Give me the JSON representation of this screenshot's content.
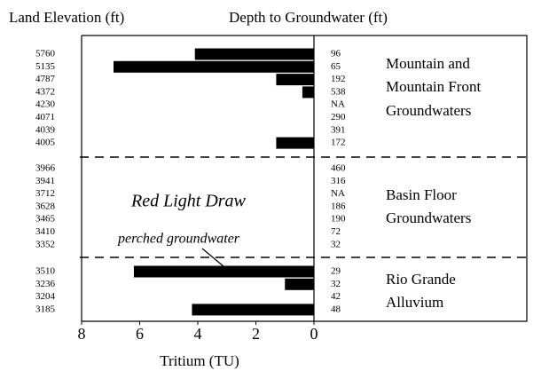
{
  "chart_data": {
    "type": "bar",
    "left_header": "Land Elevation (ft)",
    "right_header": "Depth to Groundwater (ft)",
    "xlabel": "Tritium (TU)",
    "xlim": [
      8,
      0
    ],
    "xticks": [
      8,
      6,
      4,
      2,
      0
    ],
    "color": "#000000",
    "annotations": [
      "Red Light Draw",
      "perched groundwater"
    ],
    "groups": [
      {
        "label": [
          "Mountain and",
          "Mountain Front",
          "Groundwaters"
        ],
        "categories": [
          "5760",
          "5135",
          "4787",
          "4372",
          "4230",
          "4071",
          "4039",
          "4005"
        ],
        "depth_labels": [
          "96",
          "65",
          "192",
          "538",
          "NA",
          "290",
          "391",
          "172"
        ],
        "values": [
          4.1,
          6.9,
          1.3,
          0.4,
          null,
          null,
          null,
          1.3
        ]
      },
      {
        "label": [
          "Basin Floor",
          "Groundwaters"
        ],
        "categories": [
          "3966",
          "3941",
          "3712",
          "3628",
          "3465",
          "3410",
          "3352"
        ],
        "depth_labels": [
          "460",
          "316",
          "NA",
          "186",
          "190",
          "72",
          "32"
        ],
        "values": [
          null,
          null,
          null,
          null,
          null,
          null,
          null
        ]
      },
      {
        "label": [
          "Rio Grande",
          "Alluvium"
        ],
        "categories": [
          "3510",
          "3236",
          "3204",
          "3185"
        ],
        "depth_labels": [
          "29",
          "32",
          "42",
          "48"
        ],
        "values": [
          6.2,
          1.0,
          null,
          4.2
        ]
      }
    ]
  }
}
